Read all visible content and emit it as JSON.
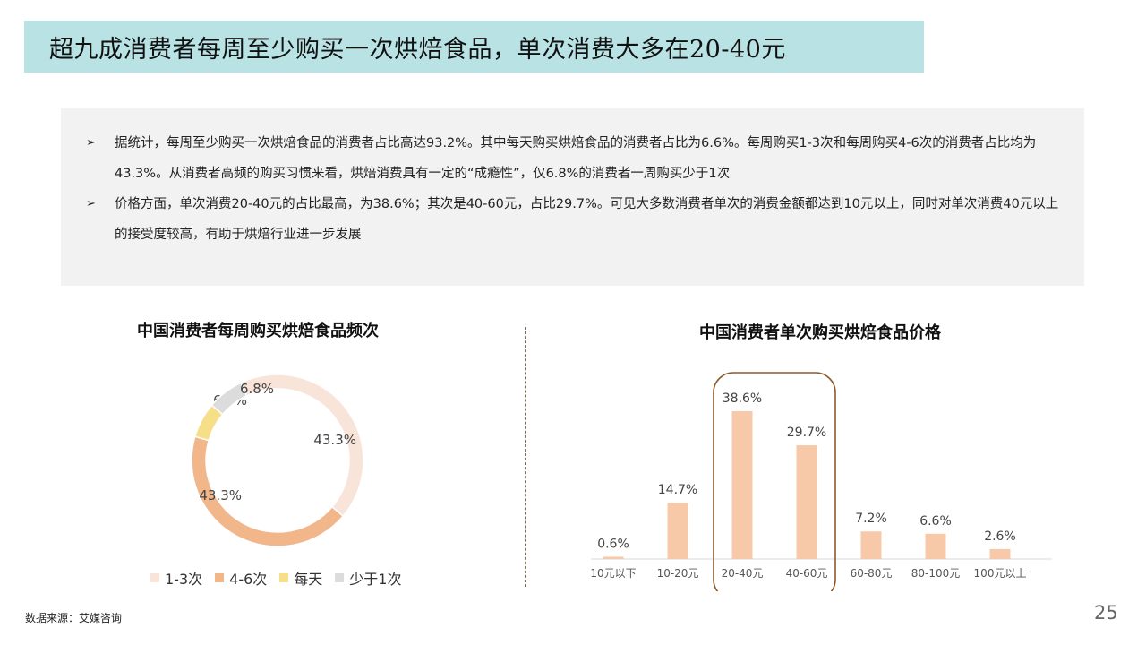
{
  "title": "超九成消费者每周至少购买一次烘焙食品，单次消费大多在20-40元",
  "summary": {
    "bullet_mark": "➢",
    "bullets": [
      "据统计，每周至少购买一次烘焙食品的消费者占比高达93.2%。其中每天购买烘焙食品的消费者占比为6.6%。每周购买1-3次和每周购买4-6次的消费者占比均为43.3%。从消费者高频的购买习惯来看，烘焙消费具有一定的“成瘾性”，仅6.8%的消费者一周购买少于1次",
      "价格方面，单次消费20-40元的占比最高，为38.6%；其次是40-60元，占比29.7%。可见大多数消费者单次的消费金额都达到10元以上，同时对单次消费40元以上的接受度较高，有助于烘焙行业进一步发展"
    ]
  },
  "chart_data": [
    {
      "type": "pie",
      "title": "中国消费者每周购买烘焙食品频次",
      "labels": [
        "1-3次",
        "4-6次",
        "每天",
        "少于1次"
      ],
      "values": [
        43.3,
        43.3,
        6.6,
        6.8
      ],
      "value_labels": [
        "43.3%",
        "43.3%",
        "6.6%",
        "6.8%"
      ],
      "colors": [
        "#f8e4d8",
        "#f2b68b",
        "#f7df8a",
        "#dcdcdc"
      ],
      "donut": true,
      "legend_position": "bottom"
    },
    {
      "type": "bar",
      "title": "中国消费者单次购买烘焙食品价格",
      "categories": [
        "10元以下",
        "10-20元",
        "20-40元",
        "40-60元",
        "60-80元",
        "80-100元",
        "100元以上"
      ],
      "values": [
        0.6,
        14.7,
        38.6,
        29.7,
        7.2,
        6.6,
        2.6
      ],
      "value_labels": [
        "0.6%",
        "14.7%",
        "38.6%",
        "29.7%",
        "7.2%",
        "6.6%",
        "2.6%"
      ],
      "bar_color": "#f8c9a8",
      "highlight_categories": [
        "20-40元",
        "40-60元"
      ],
      "highlight_color": "#8b5a2b",
      "grid": false
    }
  ],
  "source": "数据来源：艾媒咨询",
  "page_number": "25"
}
